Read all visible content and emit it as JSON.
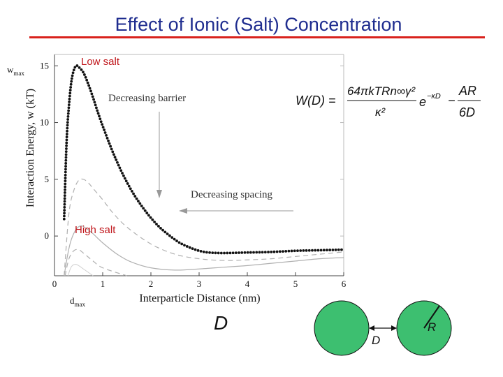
{
  "slide": {
    "title": "Effect of Ionic (Salt) Concentration"
  },
  "chart_data": {
    "type": "line",
    "xlabel": "Interparticle Distance (nm)",
    "ylabel": "Interaction Energy, w (kT)",
    "xlim": [
      0,
      6
    ],
    "ylim": [
      -3.5,
      16
    ],
    "x_ticks": [
      "0",
      "1",
      "2",
      "3",
      "4",
      "5",
      "6"
    ],
    "y_ticks": [
      "15",
      "10",
      "5",
      "0"
    ],
    "y_tick_values": [
      15,
      10,
      5,
      0
    ],
    "grid": false,
    "annotations": {
      "wmax": "w",
      "wmax_sub": "max",
      "dmax": "d",
      "dmax_sub": "max",
      "low_salt": "Low salt",
      "high_salt": "High salt",
      "decreasing_barrier": "Decreasing barrier",
      "decreasing_spacing": "Decreasing spacing"
    },
    "series": [
      {
        "style": "dotted-black",
        "points": [
          [
            0.2,
            1.5
          ],
          [
            0.25,
            8.2
          ],
          [
            0.3,
            11.5
          ],
          [
            0.35,
            13.6
          ],
          [
            0.4,
            14.6
          ],
          [
            0.45,
            15.0
          ],
          [
            0.5,
            14.9
          ],
          [
            0.6,
            14.4
          ],
          [
            0.7,
            13.4
          ],
          [
            0.8,
            12.2
          ],
          [
            0.9,
            10.9
          ],
          [
            1.0,
            9.7
          ],
          [
            1.2,
            7.5
          ],
          [
            1.4,
            5.6
          ],
          [
            1.6,
            4.0
          ],
          [
            1.8,
            2.7
          ],
          [
            2.0,
            1.6
          ],
          [
            2.2,
            0.7
          ],
          [
            2.4,
            0.0
          ],
          [
            2.6,
            -0.6
          ],
          [
            2.8,
            -1.0
          ],
          [
            3.0,
            -1.3
          ],
          [
            3.2,
            -1.45
          ],
          [
            3.5,
            -1.5
          ],
          [
            4.0,
            -1.45
          ],
          [
            4.5,
            -1.4
          ],
          [
            5.0,
            -1.3
          ],
          [
            5.5,
            -1.25
          ],
          [
            6.0,
            -1.2
          ]
        ]
      },
      {
        "style": "dashed-gray",
        "points": [
          [
            0.2,
            -3.5
          ],
          [
            0.3,
            2.0
          ],
          [
            0.4,
            4.0
          ],
          [
            0.5,
            4.9
          ],
          [
            0.6,
            5.0
          ],
          [
            0.7,
            4.7
          ],
          [
            0.8,
            4.2
          ],
          [
            1.0,
            3.2
          ],
          [
            1.2,
            2.1
          ],
          [
            1.5,
            0.8
          ],
          [
            2.0,
            -0.7
          ],
          [
            2.5,
            -1.6
          ],
          [
            3.0,
            -2.0
          ],
          [
            3.5,
            -2.15
          ],
          [
            4.0,
            -2.1
          ],
          [
            4.5,
            -2.0
          ],
          [
            5.0,
            -1.8
          ],
          [
            5.5,
            -1.6
          ],
          [
            6.0,
            -1.4
          ]
        ]
      },
      {
        "style": "solid-gray",
        "points": [
          [
            0.2,
            -3.5
          ],
          [
            0.28,
            -1.5
          ],
          [
            0.35,
            -0.3
          ],
          [
            0.45,
            0.6
          ],
          [
            0.55,
            0.9
          ],
          [
            0.65,
            0.7
          ],
          [
            0.8,
            0.2
          ],
          [
            1.0,
            -0.6
          ],
          [
            1.3,
            -1.6
          ],
          [
            1.6,
            -2.3
          ],
          [
            2.0,
            -2.8
          ],
          [
            2.5,
            -3.0
          ],
          [
            3.0,
            -2.9
          ],
          [
            3.5,
            -2.75
          ],
          [
            4.0,
            -2.6
          ],
          [
            4.5,
            -2.4
          ],
          [
            5.0,
            -2.2
          ],
          [
            5.5,
            -2.0
          ],
          [
            6.0,
            -1.9
          ]
        ]
      },
      {
        "style": "dashed-gray",
        "points": [
          [
            0.22,
            -3.5
          ],
          [
            0.3,
            -2.0
          ],
          [
            0.4,
            -1.3
          ],
          [
            0.5,
            -1.2
          ],
          [
            0.6,
            -1.5
          ],
          [
            0.8,
            -2.2
          ],
          [
            1.0,
            -2.8
          ],
          [
            1.5,
            -3.5
          ]
        ]
      },
      {
        "style": "solid-light",
        "points": [
          [
            0.28,
            -3.5
          ],
          [
            0.35,
            -2.7
          ],
          [
            0.45,
            -2.5
          ],
          [
            0.6,
            -2.9
          ],
          [
            0.8,
            -3.5
          ]
        ]
      }
    ]
  },
  "equation": {
    "lhs": "W(D) =",
    "numerator": "64πkTRn∞γ²",
    "denominator": "κ²",
    "exp": "e",
    "exp_power": "−κD",
    "minus": "−",
    "term2_num": "AR",
    "term2_den": "6D"
  },
  "diagram": {
    "big_label": "D",
    "distance_label": "D",
    "radius_label": "R",
    "sphere_color": "#3dbf70"
  }
}
